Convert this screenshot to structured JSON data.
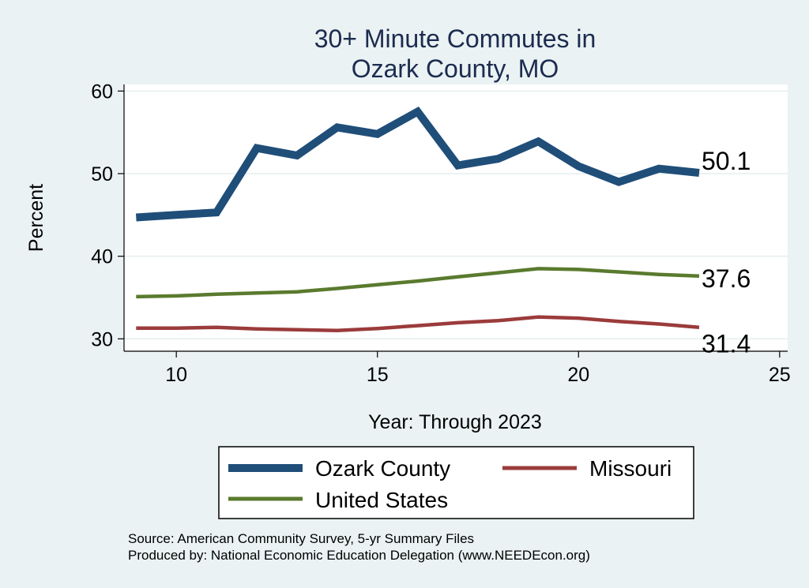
{
  "chart_data": {
    "type": "line",
    "title": [
      "30+ Minute Commutes in",
      "Ozark County, MO"
    ],
    "xlabel": "Year: Through 2023",
    "ylabel": "Percent",
    "xlim": [
      8.7,
      25.2
    ],
    "ylim": [
      28.5,
      60.8
    ],
    "xticks": [
      10,
      15,
      20,
      25
    ],
    "yticks": [
      30,
      40,
      50,
      60
    ],
    "grid": true,
    "x": [
      9,
      10,
      11,
      12,
      13,
      14,
      15,
      16,
      17,
      18,
      19,
      20,
      21,
      22,
      23
    ],
    "series": [
      {
        "name": "Ozark County",
        "color": "#1f4e79",
        "values": [
          44.7,
          45.0,
          45.3,
          53.1,
          52.2,
          55.6,
          54.8,
          57.5,
          51.0,
          51.8,
          53.9,
          50.9,
          49.0,
          50.6,
          50.1
        ],
        "end_label": "50.1"
      },
      {
        "name": "United States",
        "color": "#5a7a2e",
        "values": [
          35.1,
          35.2,
          35.4,
          35.55,
          35.7,
          36.1,
          36.55,
          37.0,
          37.5,
          38.0,
          38.5,
          38.4,
          38.1,
          37.8,
          37.6
        ],
        "end_label": "37.6"
      },
      {
        "name": "Missouri",
        "color": "#9b3b3b",
        "values": [
          31.3,
          31.3,
          31.4,
          31.2,
          31.1,
          31.0,
          31.25,
          31.6,
          31.95,
          32.2,
          32.65,
          32.5,
          32.1,
          31.8,
          31.4
        ],
        "end_label": "31.4"
      }
    ],
    "legend": {
      "placement": "bottom",
      "items": [
        "Ozark County",
        "Missouri",
        "United States"
      ]
    },
    "source_lines": [
      "Source: American Community Survey, 5-yr Summary Files",
      "Produced by: National Economic Education Delegation (www.NEEDEcon.org)"
    ]
  }
}
